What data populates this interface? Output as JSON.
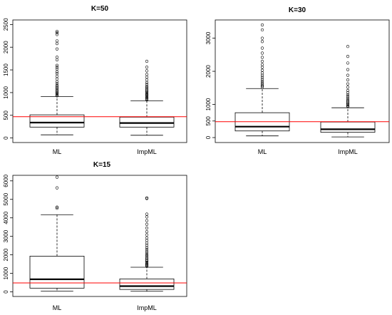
{
  "colors": {
    "background": "#ffffff",
    "box_stroke": "#000000",
    "reference_line": "#ff0000"
  },
  "chart_data": [
    {
      "type": "box",
      "title": "K=50",
      "categories": [
        "ML",
        "ImpML"
      ],
      "ylim": [
        -100,
        2600
      ],
      "yticks": [
        0,
        500,
        1000,
        1500,
        2000,
        2500
      ],
      "reference_line": 470,
      "boxes": [
        {
          "name": "ML",
          "whisker_low": 70,
          "q1": 240,
          "median": 340,
          "q3": 510,
          "whisker_high": 910,
          "outliers": [
            930,
            950,
            970,
            990,
            1010,
            1040,
            1070,
            1100,
            1130,
            1160,
            1200,
            1240,
            1300,
            1360,
            1420,
            1460,
            1520,
            1560,
            1600,
            1720,
            1780,
            1960,
            2080,
            2140,
            2280,
            2320,
            2350
          ]
        },
        {
          "name": "ImpML",
          "whisker_low": 60,
          "q1": 240,
          "median": 330,
          "q3": 460,
          "whisker_high": 820,
          "outliers": [
            840,
            860,
            880,
            900,
            920,
            940,
            960,
            980,
            1000,
            1020,
            1050,
            1080,
            1110,
            1140,
            1180,
            1220,
            1280,
            1340,
            1400,
            1480,
            1560,
            1690
          ]
        }
      ]
    },
    {
      "type": "box",
      "title": "K=30",
      "categories": [
        "ML",
        "ImpML"
      ],
      "ylim": [
        -150,
        3550
      ],
      "yticks": [
        0,
        500,
        1000,
        2000,
        3000
      ],
      "reference_line": 480,
      "boxes": [
        {
          "name": "ML",
          "whisker_low": 50,
          "q1": 200,
          "median": 330,
          "q3": 750,
          "whisker_high": 1480,
          "outliers": [
            1520,
            1560,
            1600,
            1650,
            1700,
            1760,
            1820,
            1880,
            1950,
            2030,
            2120,
            2200,
            2300,
            2420,
            2550,
            2700,
            2900,
            3000,
            3250,
            3400
          ]
        },
        {
          "name": "ImpML",
          "whisker_low": 20,
          "q1": 160,
          "median": 250,
          "q3": 470,
          "whisker_high": 900,
          "outliers": [
            930,
            960,
            990,
            1020,
            1060,
            1100,
            1140,
            1190,
            1240,
            1290,
            1350,
            1420,
            1520,
            1620,
            1740,
            1880,
            2050,
            2250,
            2450,
            2750
          ]
        }
      ]
    },
    {
      "type": "box",
      "title": "K=15",
      "categories": [
        "ML",
        "ImpML"
      ],
      "ylim": [
        -250,
        6300
      ],
      "yticks": [
        0,
        1000,
        2000,
        3000,
        4000,
        5000,
        6000
      ],
      "reference_line": 480,
      "boxes": [
        {
          "name": "ML",
          "whisker_low": 40,
          "q1": 200,
          "median": 680,
          "q3": 1930,
          "whisker_high": 4170,
          "outliers": [
            4520,
            4580,
            5620,
            6200
          ]
        },
        {
          "name": "ImpML",
          "whisker_low": 30,
          "q1": 130,
          "median": 310,
          "q3": 700,
          "whisker_high": 1330,
          "outliers": [
            1380,
            1420,
            1460,
            1500,
            1550,
            1600,
            1660,
            1720,
            1790,
            1860,
            1940,
            2020,
            2110,
            2200,
            2300,
            2400,
            2520,
            2640,
            2780,
            2920,
            3080,
            3250,
            3450,
            3650,
            3850,
            4050,
            4200,
            5040,
            5080
          ]
        }
      ]
    }
  ]
}
